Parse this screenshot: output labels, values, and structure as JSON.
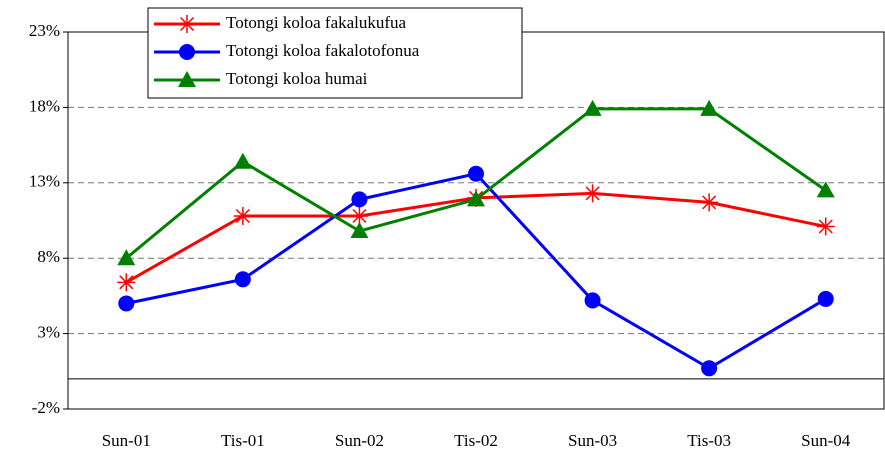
{
  "chart_data": {
    "type": "line",
    "categories": [
      "Sun-01",
      "Tis-01",
      "Sun-02",
      "Tis-02",
      "Sun-03",
      "Tis-03",
      "Sun-04"
    ],
    "series": [
      {
        "name": "Totongi koloa fakalukufua",
        "color": "#ff0000",
        "marker": "star",
        "values": [
          6.4,
          10.8,
          10.8,
          12.0,
          12.3,
          11.7,
          10.1
        ]
      },
      {
        "name": "Totongi koloa fakalotofonua",
        "color": "#0000ff",
        "marker": "circle",
        "values": [
          5.0,
          6.6,
          11.9,
          13.6,
          5.2,
          0.7,
          5.3
        ]
      },
      {
        "name": "Totongi koloa humai",
        "color": "#008000",
        "marker": "triangle",
        "values": [
          8.0,
          14.4,
          9.8,
          11.9,
          17.9,
          17.9,
          12.5
        ]
      }
    ],
    "ylim": [
      -2,
      23
    ],
    "yticks": [
      {
        "value": -2,
        "label": "-2%"
      },
      {
        "value": 3,
        "label": "3%"
      },
      {
        "value": 8,
        "label": "8%"
      },
      {
        "value": 13,
        "label": "13%"
      },
      {
        "value": 18,
        "label": "18%"
      },
      {
        "value": 23,
        "label": "23%"
      }
    ],
    "grid": true,
    "legend": "top-left"
  }
}
